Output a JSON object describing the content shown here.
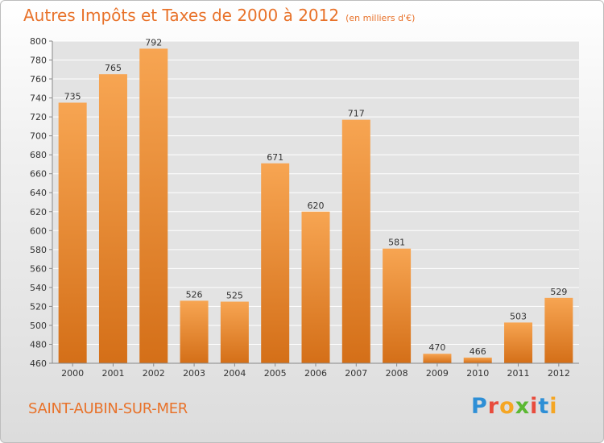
{
  "header": {
    "title": "Autres Impôts et Taxes de 2000 à 2012",
    "subtitle": "(en milliers d'€)"
  },
  "footer": {
    "city": "SAINT-AUBIN-SUR-MER",
    "logo_letters": [
      "P",
      "r",
      "o",
      "x",
      "i",
      "t",
      "i"
    ],
    "logo_colors": [
      "#2e8fd6",
      "#e84c3d",
      "#f5a623",
      "#5bb832",
      "#e84c3d",
      "#2e8fd6",
      "#f5a623"
    ]
  },
  "colors": {
    "bar_top": "#f7a552",
    "bar_bottom": "#d46f18",
    "grid": "#ffffff",
    "title": "#e8722a"
  },
  "chart_data": {
    "type": "bar",
    "title": "Autres Impôts et Taxes de 2000 à 2012",
    "subtitle": "(en milliers d'€)",
    "xlabel": "",
    "ylabel": "",
    "categories": [
      "2000",
      "2001",
      "2002",
      "2003",
      "2004",
      "2005",
      "2006",
      "2007",
      "2008",
      "2009",
      "2010",
      "2011",
      "2012"
    ],
    "values": [
      735,
      765,
      792,
      526,
      525,
      671,
      620,
      717,
      581,
      470,
      466,
      503,
      529
    ],
    "ylim": [
      460,
      800
    ],
    "yticks": [
      460,
      480,
      500,
      520,
      540,
      560,
      580,
      600,
      620,
      640,
      660,
      680,
      700,
      720,
      740,
      760,
      780,
      800
    ],
    "grid": true,
    "legend": "none"
  }
}
